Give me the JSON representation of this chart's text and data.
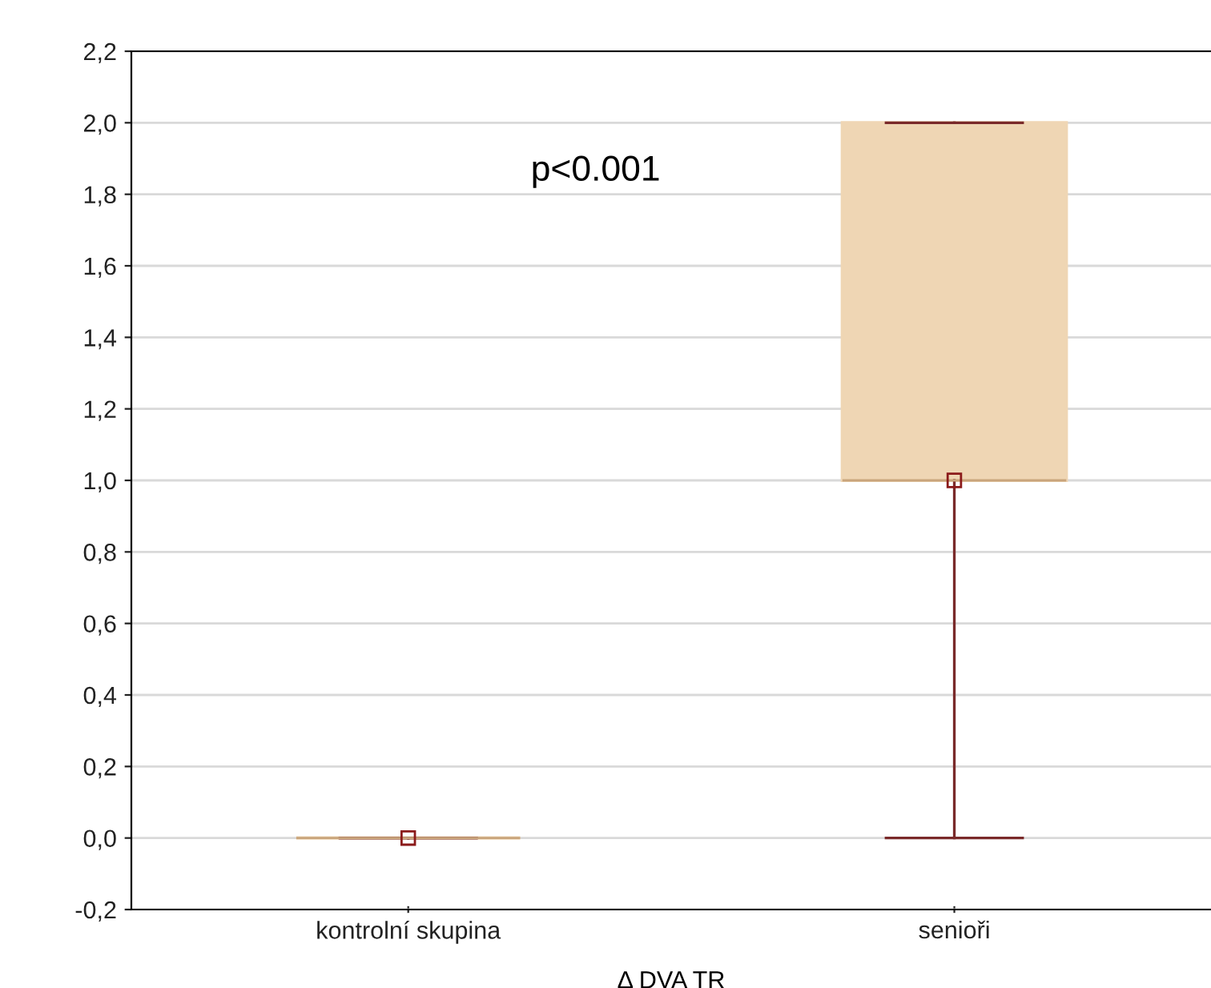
{
  "chart_data": {
    "type": "box",
    "xlabel": "Δ DVA TR",
    "categories": [
      "kontrolní skupina",
      "senioři"
    ],
    "boxes": [
      {
        "low": 0,
        "q1": 0,
        "median": 0,
        "q3": 0,
        "high": 0
      },
      {
        "low": 0,
        "q1": 1,
        "median": 1,
        "q3": 2,
        "high": 2
      }
    ],
    "color": "#efd6b4",
    "ylim": [
      -0.2,
      2.2
    ],
    "yticks": [
      {
        "value": -0.2,
        "label": "-0,2"
      },
      {
        "value": 0,
        "label": "0,0"
      },
      {
        "value": 0.2,
        "label": "0,2"
      },
      {
        "value": 0.4,
        "label": "0,4"
      },
      {
        "value": 0.6,
        "label": "0,6"
      },
      {
        "value": 0.8,
        "label": "0,8"
      },
      {
        "value": 1.0,
        "label": "1,0"
      },
      {
        "value": 1.2,
        "label": "1,2"
      },
      {
        "value": 1.4,
        "label": "1,4"
      },
      {
        "value": 1.6,
        "label": "1,6"
      },
      {
        "value": 1.8,
        "label": "1,8"
      },
      {
        "value": 2.0,
        "label": "2,0"
      },
      {
        "value": 2.2,
        "label": "2,2"
      }
    ],
    "series": [
      {
        "type": "scatter",
        "x": [
          "kontrolní skupina",
          "senioři"
        ],
        "values": [
          0,
          1
        ],
        "color": "#8b1a1a",
        "marker": "square"
      }
    ],
    "grid": "y",
    "annotations": [
      "p<0.001"
    ]
  }
}
